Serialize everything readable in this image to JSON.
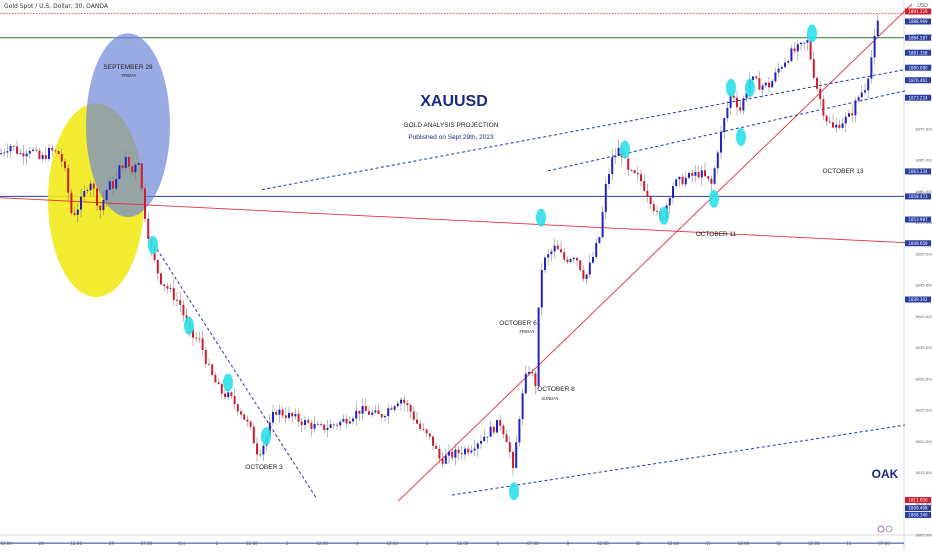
{
  "header": {
    "symbol": "Gold Spot / U.S. Dollar, 30, OANDA",
    "currency": "USD"
  },
  "annotations": {
    "title": "XAUUSD",
    "subtitle": "GOLD ANALYSIS PROJECTION",
    "published": "Published on Sept 29th, 2023",
    "signature": "OAK",
    "sep29": "SEPTEMBER 29",
    "sep29_day": "FRIDAY",
    "oct3": "OCTOBER 3",
    "oct6": "OCTOBER 6",
    "oct6_day": "FRIDAY",
    "oct8": "OCTOBER 8",
    "oct8_day": "SUNDAY",
    "oct11": "OCTOBER 11",
    "oct13": "OCTOBER 13"
  },
  "colors": {
    "bull": "#1e22c8",
    "bear": "#d01e2e",
    "trendline": "#e03040",
    "channel": "#2336a8",
    "marker": "#2ee0e8",
    "ellipse_yellow": "#f3ea1a",
    "ellipse_blue": "#6f86d6",
    "level_green": "#2e7d32",
    "level_blue": "#2a3ea0",
    "price_tag": "#2a3ea0",
    "price_tag_red": "#d01e2e",
    "text_navy": "#1a2a80"
  },
  "chart_data": {
    "type": "candlestick",
    "ylim": [
      1805,
      1890
    ],
    "x_tick_labels": [
      "12:00",
      "28",
      "12:00",
      "29",
      "07:00",
      "Oct",
      "2",
      "12:00",
      "3",
      "12:00",
      "4",
      "12:00",
      "5",
      "12:00",
      "6",
      "07:00",
      "8",
      "12:00",
      "10",
      "12:00",
      "11",
      "12:00",
      "12",
      "12:00",
      "13",
      "07:00"
    ],
    "y_tick_labels": [
      "1885.000",
      "1880.000",
      "1875.000",
      "1870.000",
      "1865.000",
      "1860.000",
      "1855.000",
      "1850.000",
      "1845.000",
      "1840.000",
      "1835.000",
      "1830.000",
      "1825.000",
      "1820.000",
      "1815.000",
      "1810.000",
      "1805.000"
    ],
    "price_tags": [
      {
        "text": "1891.229",
        "price": 1888.8,
        "style": "red"
      },
      {
        "text": "1888.969",
        "price": 1887.2,
        "style": "blue"
      },
      {
        "text": "1884.587",
        "price": 1884.6,
        "style": "blue"
      },
      {
        "text": "1881.358",
        "price": 1882.2,
        "style": "blue"
      },
      {
        "text": "1880.080",
        "price": 1879.8,
        "style": "blue"
      },
      {
        "text": "1876.461",
        "price": 1877.8,
        "style": "blue"
      },
      {
        "text": "1873.224",
        "price": 1875.0,
        "style": "blue"
      },
      {
        "text": "1863.234",
        "price": 1863.2,
        "style": "blue"
      },
      {
        "text": "1858.473",
        "price": 1859.2,
        "style": "blue"
      },
      {
        "text": "1853.987",
        "price": 1855.5,
        "style": "blue"
      },
      {
        "text": "1849.659",
        "price": 1851.7,
        "style": "blue"
      },
      {
        "text": "1839.302",
        "price": 1842.7,
        "style": "blue"
      },
      {
        "text": "1811.050",
        "price": 1810.6,
        "style": "red"
      },
      {
        "text": "1809.408",
        "price": 1809.3,
        "style": "blue"
      },
      {
        "text": "1808.340",
        "price": 1808.2,
        "style": "blue"
      }
    ],
    "levels": [
      {
        "price": 1888.5,
        "color": "red",
        "style": "dotted"
      },
      {
        "price": 1884.6,
        "color": "green",
        "style": "solid"
      },
      {
        "price": 1859.2,
        "color": "blue",
        "style": "solid"
      },
      {
        "price": 1803.7,
        "color": "blue",
        "style": "solid"
      }
    ],
    "close_path": [
      [
        0,
        1866
      ],
      [
        10,
        1867.5
      ],
      [
        20,
        1866
      ],
      [
        30,
        1867
      ],
      [
        40,
        1865
      ],
      [
        50,
        1866.5
      ],
      [
        60,
        1866
      ],
      [
        65,
        1863
      ],
      [
        72,
        1856
      ],
      [
        80,
        1858
      ],
      [
        90,
        1862
      ],
      [
        100,
        1857
      ],
      [
        108,
        1861
      ],
      [
        115,
        1861
      ],
      [
        120,
        1864
      ],
      [
        126,
        1865
      ],
      [
        132,
        1863
      ],
      [
        138,
        1866
      ],
      [
        142,
        1860
      ],
      [
        146,
        1855
      ],
      [
        152,
        1850
      ],
      [
        160,
        1846
      ],
      [
        170,
        1844
      ],
      [
        180,
        1842
      ],
      [
        190,
        1837
      ],
      [
        200,
        1836
      ],
      [
        210,
        1831
      ],
      [
        220,
        1828
      ],
      [
        230,
        1827
      ],
      [
        240,
        1825
      ],
      [
        250,
        1822
      ],
      [
        258,
        1818
      ],
      [
        265,
        1820
      ],
      [
        275,
        1825
      ],
      [
        290,
        1824
      ],
      [
        305,
        1823
      ],
      [
        320,
        1822
      ],
      [
        340,
        1823
      ],
      [
        360,
        1825
      ],
      [
        380,
        1824
      ],
      [
        400,
        1827
      ],
      [
        410,
        1825
      ],
      [
        420,
        1822
      ],
      [
        432,
        1820
      ],
      [
        440,
        1817
      ],
      [
        455,
        1818
      ],
      [
        470,
        1819
      ],
      [
        485,
        1821
      ],
      [
        500,
        1823
      ],
      [
        508,
        1820
      ],
      [
        513,
        1815
      ],
      [
        520,
        1825
      ],
      [
        528,
        1832
      ],
      [
        536,
        1829
      ],
      [
        540,
        1847
      ],
      [
        545,
        1849
      ],
      [
        555,
        1851
      ],
      [
        565,
        1849
      ],
      [
        575,
        1850
      ],
      [
        585,
        1846
      ],
      [
        592,
        1849
      ],
      [
        600,
        1853
      ],
      [
        606,
        1861
      ],
      [
        612,
        1865
      ],
      [
        620,
        1867
      ],
      [
        628,
        1863
      ],
      [
        640,
        1862
      ],
      [
        650,
        1859
      ],
      [
        660,
        1855
      ],
      [
        665,
        1857
      ],
      [
        672,
        1861
      ],
      [
        685,
        1862
      ],
      [
        700,
        1863
      ],
      [
        712,
        1861
      ],
      [
        718,
        1867
      ],
      [
        725,
        1872
      ],
      [
        732,
        1876
      ],
      [
        740,
        1873
      ],
      [
        750,
        1878
      ],
      [
        760,
        1877
      ],
      [
        770,
        1877
      ],
      [
        780,
        1880
      ],
      [
        790,
        1882
      ],
      [
        800,
        1883
      ],
      [
        808,
        1884
      ],
      [
        812,
        1880
      ],
      [
        818,
        1876
      ],
      [
        825,
        1872
      ],
      [
        833,
        1870
      ],
      [
        840,
        1871
      ],
      [
        850,
        1872
      ],
      [
        858,
        1875
      ],
      [
        866,
        1877
      ],
      [
        872,
        1882
      ],
      [
        878,
        1887
      ],
      [
        882,
        1888.8
      ]
    ],
    "ellipses": [
      {
        "cx": 96,
        "cy": 1858.6,
        "rx": 48,
        "ry": 15.5,
        "color": "yellow"
      },
      {
        "cx": 128,
        "cy": 1870.6,
        "rx": 42,
        "ry": 14.7,
        "color": "blue"
      }
    ],
    "trendlines": [
      {
        "from": [
          0,
          1859
        ],
        "to": [
          905,
          1851.8
        ],
        "color": "red",
        "style": "solid"
      },
      {
        "from": [
          148,
          1853
        ],
        "to": [
          316,
          1811
        ],
        "color": "blue",
        "style": "dashed"
      },
      {
        "from": [
          398,
          1810.4
        ],
        "to": [
          912,
          1890
        ],
        "color": "red",
        "style": "solid"
      },
      {
        "from": [
          262,
          1860.3
        ],
        "to": [
          905,
          1879.5
        ],
        "color": "blue",
        "style": "dashed"
      },
      {
        "from": [
          548,
          1863.3
        ],
        "to": [
          905,
          1876.1
        ],
        "color": "blue",
        "style": "dashed"
      },
      {
        "from": [
          452,
          1811.4
        ],
        "to": [
          905,
          1822.6
        ],
        "color": "blue",
        "style": "dashed"
      }
    ],
    "markers": [
      [
        153,
        1851.4
      ],
      [
        189,
        1838.5
      ],
      [
        228,
        1829.4
      ],
      [
        266,
        1820.8
      ],
      [
        541,
        1855.8
      ],
      [
        514,
        1812
      ],
      [
        625,
        1866.7
      ],
      [
        664,
        1856.1
      ],
      [
        714,
        1858.8
      ],
      [
        731,
        1876.6
      ],
      [
        741,
        1868.7
      ],
      [
        750,
        1876.6
      ],
      [
        812,
        1885.3
      ]
    ]
  }
}
